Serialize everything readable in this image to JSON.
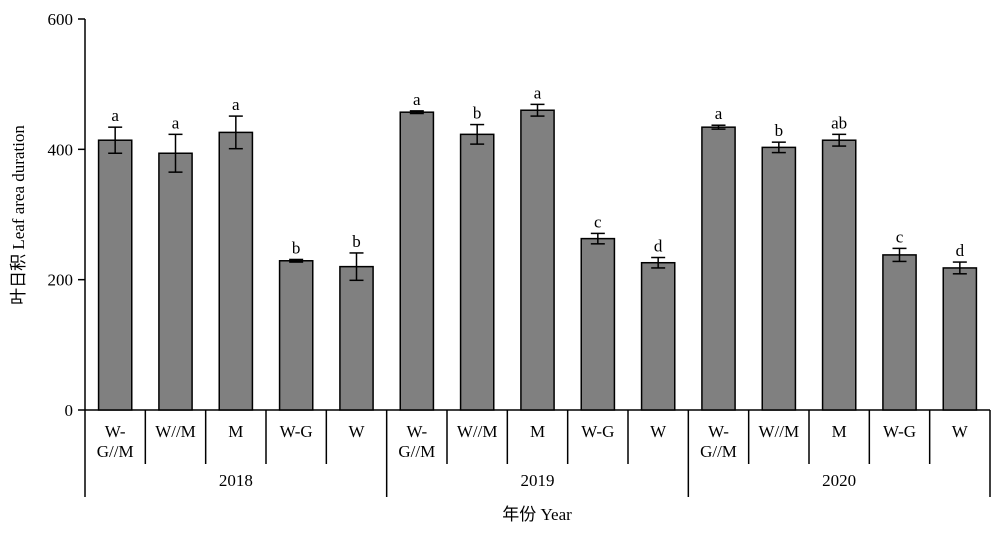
{
  "chart_data": {
    "type": "bar",
    "ylabel": "叶日积 Leaf area duration",
    "xlabel": "年份 Year",
    "ylim": [
      0,
      600
    ],
    "yticks": [
      0,
      200,
      400,
      600
    ],
    "grid": false,
    "bar_color": "#808080",
    "groups": [
      {
        "year": "2018",
        "categories": [
          [
            "W-",
            "G//M"
          ],
          [
            "W//M"
          ],
          [
            "M"
          ],
          [
            "W-G"
          ],
          [
            "W"
          ]
        ],
        "values": [
          414,
          394,
          426,
          229,
          220
        ],
        "errors": [
          20,
          29,
          25,
          2,
          21
        ],
        "letters": [
          "a",
          "a",
          "a",
          "b",
          "b"
        ]
      },
      {
        "year": "2019",
        "categories": [
          [
            "W-",
            "G//M"
          ],
          [
            "W//M"
          ],
          [
            "M"
          ],
          [
            "W-G"
          ],
          [
            "W"
          ]
        ],
        "values": [
          457,
          423,
          460,
          263,
          226
        ],
        "errors": [
          2,
          15,
          9,
          8,
          8
        ],
        "letters": [
          "a",
          "b",
          "a",
          "c",
          "d"
        ]
      },
      {
        "year": "2020",
        "categories": [
          [
            "W-",
            "G//M"
          ],
          [
            "W//M"
          ],
          [
            "M"
          ],
          [
            "W-G"
          ],
          [
            "W"
          ]
        ],
        "values": [
          434,
          403,
          414,
          238,
          218
        ],
        "errors": [
          3,
          8,
          9,
          10,
          9
        ],
        "letters": [
          "a",
          "b",
          "ab",
          "c",
          "d"
        ]
      }
    ]
  }
}
